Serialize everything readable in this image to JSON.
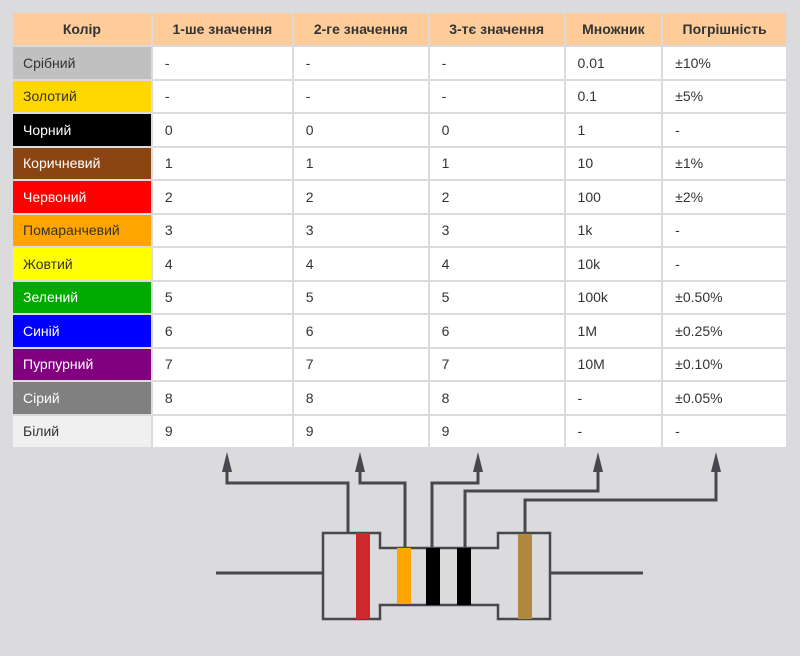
{
  "headers": [
    "Колір",
    "1-ше значення",
    "2-ге значення",
    "3-тє значення",
    "Множник",
    "Погрішність"
  ],
  "rows": [
    {
      "color": "Срібний",
      "bg": "#c0c0c0",
      "fg": "#333333",
      "v1": "-",
      "v2": "-",
      "v3": "-",
      "mult": "0.01",
      "tol": "±10%"
    },
    {
      "color": "Золотий",
      "bg": "#ffd700",
      "fg": "#333333",
      "v1": "-",
      "v2": "-",
      "v3": "-",
      "mult": "0.1",
      "tol": "±5%"
    },
    {
      "color": "Чорний",
      "bg": "#000000",
      "fg": "#ffffff",
      "v1": "0",
      "v2": "0",
      "v3": "0",
      "mult": "1",
      "tol": "-"
    },
    {
      "color": "Коричневий",
      "bg": "#8b4513",
      "fg": "#ffffff",
      "v1": "1",
      "v2": "1",
      "v3": "1",
      "mult": "10",
      "tol": "±1%"
    },
    {
      "color": "Червоний",
      "bg": "#ff0000",
      "fg": "#ffffff",
      "v1": "2",
      "v2": "2",
      "v3": "2",
      "mult": "100",
      "tol": "±2%"
    },
    {
      "color": "Помаранчевий",
      "bg": "#ffa500",
      "fg": "#333333",
      "v1": "3",
      "v2": "3",
      "v3": "3",
      "mult": "1k",
      "tol": "-"
    },
    {
      "color": "Жовтий",
      "bg": "#ffff00",
      "fg": "#333333",
      "v1": "4",
      "v2": "4",
      "v3": "4",
      "mult": "10k",
      "tol": "-"
    },
    {
      "color": "Зелений",
      "bg": "#00aa00",
      "fg": "#ffffff",
      "v1": "5",
      "v2": "5",
      "v3": "5",
      "mult": "100k",
      "tol": "±0.50%"
    },
    {
      "color": "Синій",
      "bg": "#0000ff",
      "fg": "#ffffff",
      "v1": "6",
      "v2": "6",
      "v3": "6",
      "mult": "1M",
      "tol": "±0.25%"
    },
    {
      "color": "Пурпурний",
      "bg": "#800080",
      "fg": "#ffffff",
      "v1": "7",
      "v2": "7",
      "v3": "7",
      "mult": "10M",
      "tol": "±0.10%"
    },
    {
      "color": "Сірий",
      "bg": "#808080",
      "fg": "#ffffff",
      "v1": "8",
      "v2": "8",
      "v3": "8",
      "mult": "-",
      "tol": "±0.05%"
    },
    {
      "color": "Білий",
      "bg": "#f0f0f0",
      "fg": "#333333",
      "v1": "9",
      "v2": "9",
      "v3": "9",
      "mult": "-",
      "tol": "-"
    }
  ],
  "resistor_bands": [
    "#cc2a2a",
    "#ffa500",
    "#000000",
    "#000000",
    "#b08840"
  ]
}
